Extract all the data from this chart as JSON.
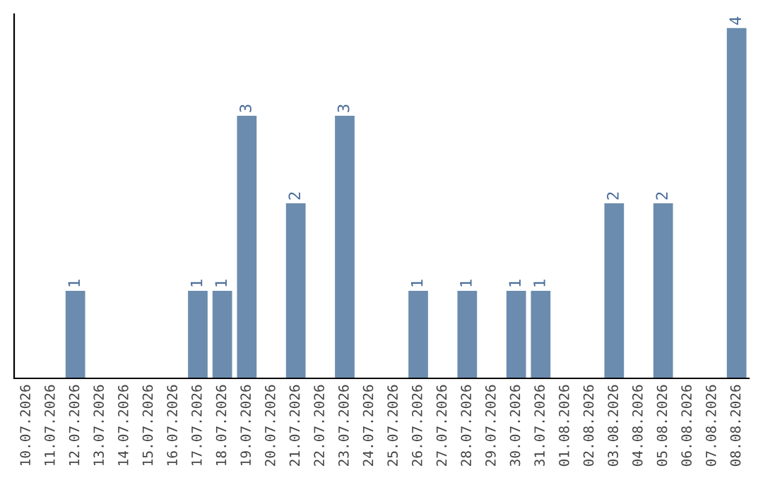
{
  "chart_data": {
    "type": "bar",
    "categories": [
      "10.07.2026",
      "11.07.2026",
      "12.07.2026",
      "13.07.2026",
      "14.07.2026",
      "15.07.2026",
      "16.07.2026",
      "17.07.2026",
      "18.07.2026",
      "19.07.2026",
      "20.07.2026",
      "21.07.2026",
      "22.07.2026",
      "23.07.2026",
      "24.07.2026",
      "25.07.2026",
      "26.07.2026",
      "27.07.2026",
      "28.07.2026",
      "29.07.2026",
      "30.07.2026",
      "31.07.2026",
      "01.08.2026",
      "02.08.2026",
      "03.08.2026",
      "04.08.2026",
      "05.08.2026",
      "06.08.2026",
      "07.08.2026",
      "08.08.2026"
    ],
    "values": [
      0,
      0,
      1,
      0,
      0,
      0,
      0,
      1,
      1,
      3,
      0,
      2,
      0,
      3,
      0,
      0,
      1,
      0,
      1,
      0,
      1,
      1,
      0,
      0,
      2,
      0,
      2,
      0,
      0,
      4
    ],
    "value_labels": [
      null,
      null,
      "1",
      null,
      null,
      null,
      null,
      "1",
      "1",
      "3",
      null,
      "2",
      null,
      "3",
      null,
      null,
      "1",
      null,
      "1",
      null,
      "1",
      "1",
      null,
      null,
      "2",
      null,
      "2",
      null,
      null,
      "4"
    ],
    "color": "#6b8cae",
    "ylim": [
      0,
      4.16
    ],
    "tick_labels": "x",
    "grid": false,
    "legend": false
  }
}
